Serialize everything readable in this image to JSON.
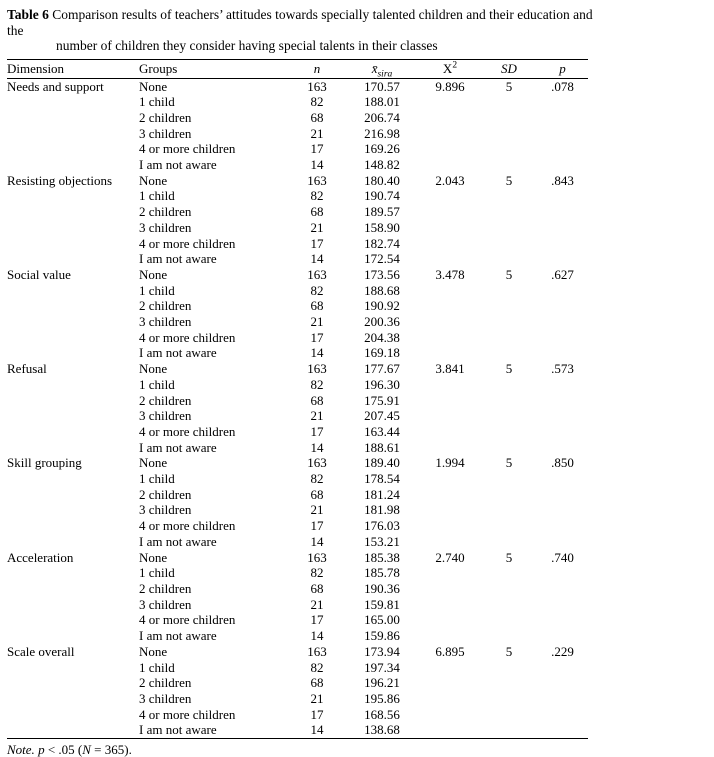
{
  "title": {
    "label": "Table 6",
    "line1": "Comparison results of teachers’ attitudes towards specially talented children and their education and the",
    "line2": "number of children they consider having special talents in their classes"
  },
  "table": {
    "header": {
      "dimension": "Dimension",
      "groups": "Groups",
      "n": "n",
      "mean_base": "x̄",
      "mean_sub": "sira",
      "chi_base": "X",
      "chi_sup": "2",
      "sd": "SD",
      "p": "p"
    },
    "sections": [
      {
        "dimension": "Needs and support",
        "chi_square": "9.896",
        "sd": "5",
        "p": ".078",
        "rows": [
          {
            "group": "None",
            "n": "163",
            "mean": "170.57"
          },
          {
            "group": "1 child",
            "n": "82",
            "mean": "188.01"
          },
          {
            "group": "2 children",
            "n": "68",
            "mean": "206.74"
          },
          {
            "group": "3 children",
            "n": "21",
            "mean": "216.98"
          },
          {
            "group": "4 or more children",
            "n": "17",
            "mean": "169.26"
          },
          {
            "group": "I am not aware",
            "n": "14",
            "mean": "148.82"
          }
        ]
      },
      {
        "dimension": "Resisting objections",
        "chi_square": "2.043",
        "sd": "5",
        "p": ".843",
        "rows": [
          {
            "group": "None",
            "n": "163",
            "mean": "180.40"
          },
          {
            "group": "1 child",
            "n": "82",
            "mean": "190.74"
          },
          {
            "group": "2 children",
            "n": "68",
            "mean": "189.57"
          },
          {
            "group": "3 children",
            "n": "21",
            "mean": "158.90"
          },
          {
            "group": "4 or more children",
            "n": "17",
            "mean": "182.74"
          },
          {
            "group": "I am not aware",
            "n": "14",
            "mean": "172.54"
          }
        ]
      },
      {
        "dimension": "Social value",
        "chi_square": "3.478",
        "sd": "5",
        "p": ".627",
        "rows": [
          {
            "group": "None",
            "n": "163",
            "mean": "173.56"
          },
          {
            "group": "1 child",
            "n": "82",
            "mean": "188.68"
          },
          {
            "group": "2 children",
            "n": "68",
            "mean": "190.92"
          },
          {
            "group": "3 children",
            "n": "21",
            "mean": "200.36"
          },
          {
            "group": "4 or more children",
            "n": "17",
            "mean": "204.38"
          },
          {
            "group": "I am not aware",
            "n": "14",
            "mean": "169.18"
          }
        ]
      },
      {
        "dimension": "Refusal",
        "chi_square": "3.841",
        "sd": "5",
        "p": ".573",
        "rows": [
          {
            "group": "None",
            "n": "163",
            "mean": "177.67"
          },
          {
            "group": "1 child",
            "n": "82",
            "mean": "196.30"
          },
          {
            "group": "2 children",
            "n": "68",
            "mean": "175.91"
          },
          {
            "group": "3 children",
            "n": "21",
            "mean": "207.45"
          },
          {
            "group": "4 or more children",
            "n": "17",
            "mean": "163.44"
          },
          {
            "group": "I am not aware",
            "n": "14",
            "mean": "188.61"
          }
        ]
      },
      {
        "dimension": "Skill grouping",
        "chi_square": "1.994",
        "sd": "5",
        "p": ".850",
        "rows": [
          {
            "group": "None",
            "n": "163",
            "mean": "189.40"
          },
          {
            "group": "1 child",
            "n": "82",
            "mean": "178.54"
          },
          {
            "group": "2 children",
            "n": "68",
            "mean": "181.24"
          },
          {
            "group": "3 children",
            "n": "21",
            "mean": "181.98"
          },
          {
            "group": "4 or more children",
            "n": "17",
            "mean": "176.03"
          },
          {
            "group": "I am not aware",
            "n": "14",
            "mean": "153.21"
          }
        ]
      },
      {
        "dimension": "Acceleration",
        "chi_square": "2.740",
        "sd": "5",
        "p": ".740",
        "rows": [
          {
            "group": "None",
            "n": "163",
            "mean": "185.38"
          },
          {
            "group": "1 child",
            "n": "82",
            "mean": "185.78"
          },
          {
            "group": "2 children",
            "n": "68",
            "mean": "190.36"
          },
          {
            "group": "3 children",
            "n": "21",
            "mean": "159.81"
          },
          {
            "group": "4 or more children",
            "n": "17",
            "mean": "165.00"
          },
          {
            "group": "I am not aware",
            "n": "14",
            "mean": "159.86"
          }
        ]
      },
      {
        "dimension": "Scale overall",
        "chi_square": "6.895",
        "sd": "5",
        "p": ".229",
        "rows": [
          {
            "group": "None",
            "n": "163",
            "mean": "173.94"
          },
          {
            "group": "1 child",
            "n": "82",
            "mean": "197.34"
          },
          {
            "group": "2 children",
            "n": "68",
            "mean": "196.21"
          },
          {
            "group": "3 children",
            "n": "21",
            "mean": "195.86"
          },
          {
            "group": "4 or more children",
            "n": "17",
            "mean": "168.56"
          },
          {
            "group": "I am not aware",
            "n": "14",
            "mean": "138.68"
          }
        ]
      }
    ]
  },
  "note": {
    "label": "Note.",
    "p": "p",
    "middle": "< .05 (",
    "n": "N",
    "end": "= 365)."
  }
}
